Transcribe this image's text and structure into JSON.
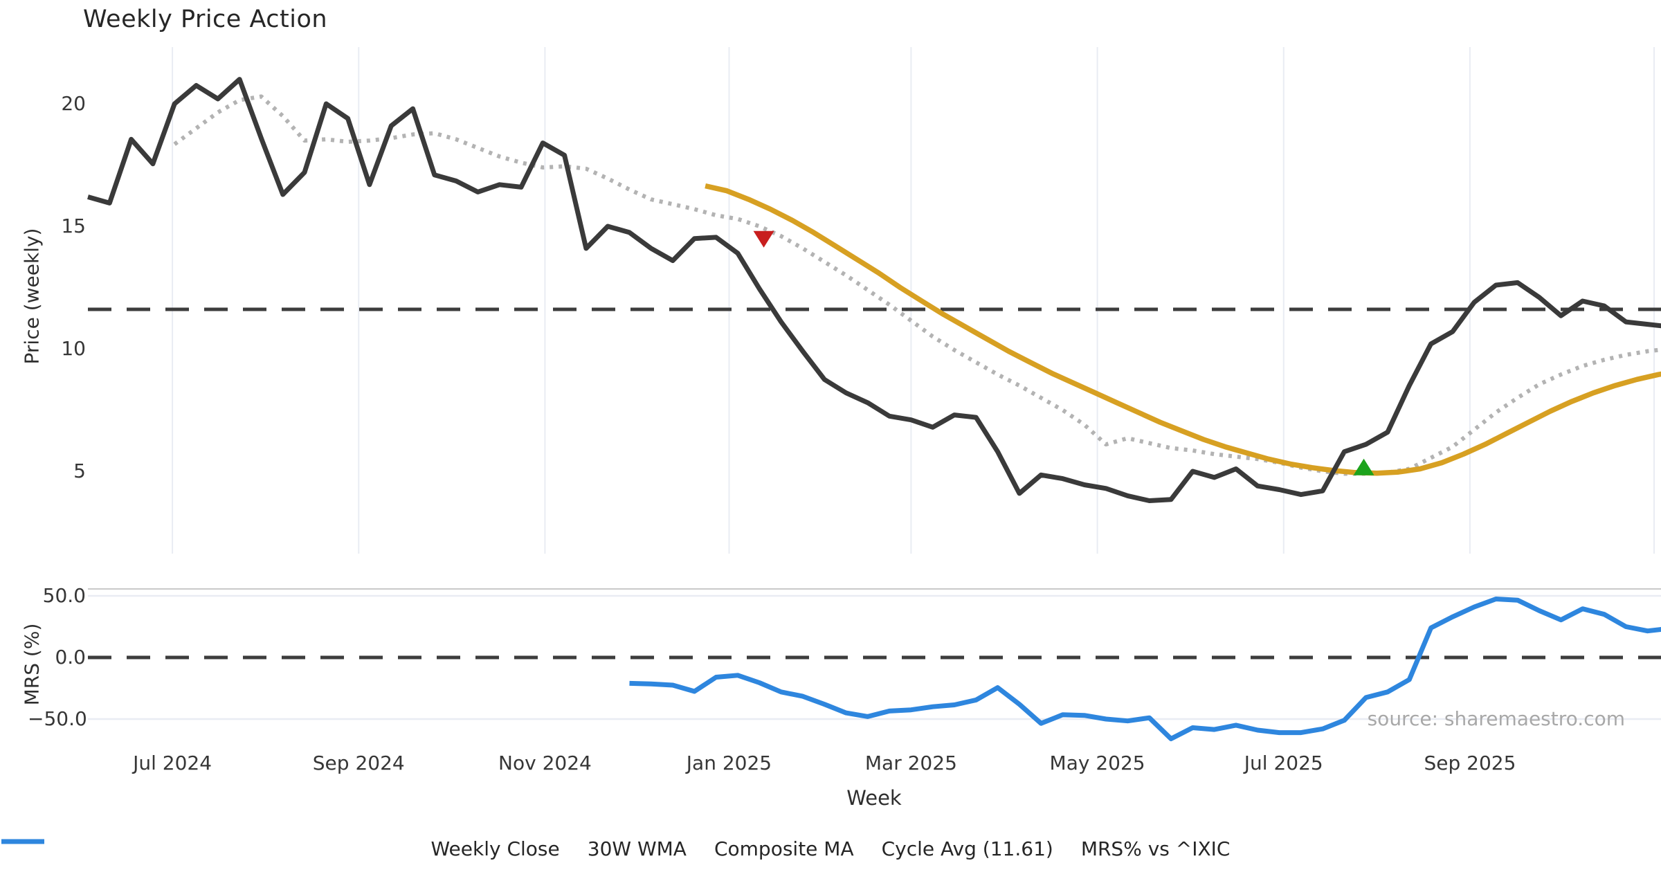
{
  "title": "Weekly Price Action",
  "source": "source: sharemaestro.com",
  "axes": {
    "price_label": "Price (weekly)",
    "mrs_label": "MRS (%)",
    "x_label": "Week",
    "price_ticks": [
      {
        "label": "20",
        "value": 20
      },
      {
        "label": "15",
        "value": 15
      },
      {
        "label": "10",
        "value": 10
      },
      {
        "label": "5",
        "value": 5
      }
    ],
    "mrs_ticks": [
      {
        "label": "50.0",
        "value": 50
      },
      {
        "label": "0.0",
        "value": 0
      },
      {
        "label": "−50.0",
        "value": -50
      }
    ],
    "x_ticks": [
      {
        "label": "Jul 2024",
        "week": 3.9
      },
      {
        "label": "Sep 2024",
        "week": 12.5
      },
      {
        "label": "Nov 2024",
        "week": 21.1
      },
      {
        "label": "Jan 2025",
        "week": 29.6
      },
      {
        "label": "Mar 2025",
        "week": 38.0
      },
      {
        "label": "May 2025",
        "week": 46.6
      },
      {
        "label": "Jul 2025",
        "week": 55.2
      },
      {
        "label": "Sep 2025",
        "week": 63.8
      },
      {
        "label": "",
        "week": 72.3
      }
    ]
  },
  "legend": {
    "items": [
      {
        "label": "Weekly Close",
        "style": "solid",
        "color": "#3a3a3a"
      },
      {
        "label": "30W WMA",
        "style": "solid",
        "color": "#d7a022"
      },
      {
        "label": "Composite MA",
        "style": "dotted",
        "color": "#b3b3b3"
      },
      {
        "label": "Cycle Avg (11.61)",
        "style": "dashed",
        "color": "#3d3d3d"
      },
      {
        "label": "MRS% vs ^IXIC",
        "style": "solid",
        "color": "#2e86de"
      }
    ]
  },
  "colors": {
    "close": "#3a3a3a",
    "wma30": "#d7a022",
    "composite": "#b3b3b3",
    "cycle_dash": "#3d3d3d",
    "mrs": "#2e86de",
    "sell_marker": "#c81e1e",
    "buy_marker": "#1da31d",
    "grid": "#e9ecf3",
    "panel_spine": "#c9c9c9"
  },
  "chart_data": {
    "type": "line",
    "x_unit": "weeks",
    "panels": [
      {
        "name": "price",
        "ylabel": "Price (weekly)",
        "ylim": [
          2.5,
          21.8
        ],
        "yticks": [
          20,
          15,
          10,
          5
        ],
        "hline": {
          "name": "Cycle Avg",
          "value": 11.61,
          "style": "dashed"
        },
        "series": [
          {
            "id": "weekly-close",
            "name": "Weekly Close",
            "color": "#3a3a3a",
            "style": "solid",
            "width": 7,
            "start_week": 0,
            "values": [
              16.2,
              15.95,
              18.55,
              17.55,
              20.0,
              20.75,
              20.2,
              21.0,
              18.6,
              16.3,
              17.2,
              20.0,
              19.4,
              16.7,
              19.1,
              19.8,
              17.1,
              16.85,
              16.4,
              16.7,
              16.6,
              18.4,
              17.9,
              14.1,
              15.0,
              14.75,
              14.1,
              13.6,
              14.5,
              14.55,
              13.9,
              12.45,
              11.1,
              9.9,
              8.75,
              8.2,
              7.8,
              7.25,
              7.1,
              6.8,
              7.3,
              7.2,
              5.8,
              4.1,
              4.85,
              4.7,
              4.45,
              4.3,
              4.0,
              3.8,
              3.85,
              5.0,
              4.75,
              5.1,
              4.4,
              4.25,
              4.05,
              4.2,
              5.8,
              6.1,
              6.6,
              8.5,
              10.2,
              10.7,
              11.9,
              12.6,
              12.7,
              12.1,
              11.35,
              11.95,
              11.75,
              11.1,
              11.0,
              10.9
            ]
          },
          {
            "id": "composite-ma",
            "name": "Composite MA",
            "color": "#b3b3b3",
            "style": "dotted",
            "width": 6,
            "start_week": 4,
            "values": [
              18.35,
              19.0,
              19.65,
              20.15,
              20.3,
              19.5,
              18.5,
              18.55,
              18.45,
              18.5,
              18.6,
              18.75,
              18.8,
              18.55,
              18.2,
              17.85,
              17.6,
              17.4,
              17.45,
              17.35,
              16.95,
              16.5,
              16.1,
              15.9,
              15.7,
              15.45,
              15.3,
              15.0,
              14.6,
              14.1,
              13.55,
              13.0,
              12.4,
              11.8,
              11.15,
              10.5,
              9.95,
              9.45,
              8.95,
              8.5,
              8.0,
              7.5,
              6.9,
              6.1,
              6.35,
              6.15,
              5.95,
              5.85,
              5.7,
              5.6,
              5.5,
              5.35,
              5.15,
              5.0,
              4.9,
              4.9,
              4.95,
              5.1,
              5.55,
              6.0,
              6.7,
              7.4,
              8.0,
              8.55,
              8.95,
              9.3,
              9.55,
              9.75,
              9.9,
              10.0
            ]
          },
          {
            "id": "wma-30w",
            "name": "30W WMA",
            "color": "#d7a022",
            "style": "solid",
            "width": 7.5,
            "start_week": 28.5,
            "values": [
              16.65,
              16.45,
              16.1,
              15.7,
              15.25,
              14.75,
              14.2,
              13.65,
              13.1,
              12.5,
              11.95,
              11.4,
              10.9,
              10.4,
              9.9,
              9.45,
              9.0,
              8.6,
              8.2,
              7.8,
              7.4,
              7.0,
              6.65,
              6.3,
              6.0,
              5.75,
              5.5,
              5.3,
              5.15,
              5.03,
              4.95,
              4.92,
              4.97,
              5.1,
              5.35,
              5.7,
              6.1,
              6.55,
              7.0,
              7.45,
              7.85,
              8.2,
              8.5,
              8.75,
              8.95,
              9.1
            ]
          }
        ],
        "markers": [
          {
            "id": "sell-signal",
            "shape": "triangle-down",
            "color": "#c81e1e",
            "week": 31.2,
            "value": 14.5
          },
          {
            "id": "buy-signal",
            "shape": "triangle-up",
            "color": "#1da31d",
            "week": 58.9,
            "value": 5.15
          }
        ]
      },
      {
        "name": "mrs",
        "ylabel": "MRS (%)",
        "ylim": [
          -75,
          55
        ],
        "yticks": [
          50,
          0,
          -50
        ],
        "hline": {
          "name": "zero",
          "value": 0,
          "style": "dashed"
        },
        "series": [
          {
            "id": "mrs-line",
            "name": "MRS% vs ^IXIC",
            "color": "#2e86de",
            "style": "solid",
            "width": 7,
            "start_week": 25,
            "values": [
              -21,
              -21.5,
              -22.5,
              -27.5,
              -16,
              -14.5,
              -20.5,
              -28,
              -31.5,
              -38,
              -45,
              -48,
              -43.5,
              -42.5,
              -40,
              -38.5,
              -34.5,
              -24.5,
              -38,
              -53.5,
              -46.5,
              -47,
              -50,
              -51.5,
              -49,
              -66,
              -57,
              -58.5,
              -55,
              -59,
              -61,
              -61,
              -58,
              -51,
              -32.5,
              -28,
              -18,
              24,
              33,
              41,
              47.5,
              46.5,
              38,
              30.5,
              39.5,
              35,
              25,
              21.5,
              23.5
            ]
          }
        ]
      }
    ]
  }
}
